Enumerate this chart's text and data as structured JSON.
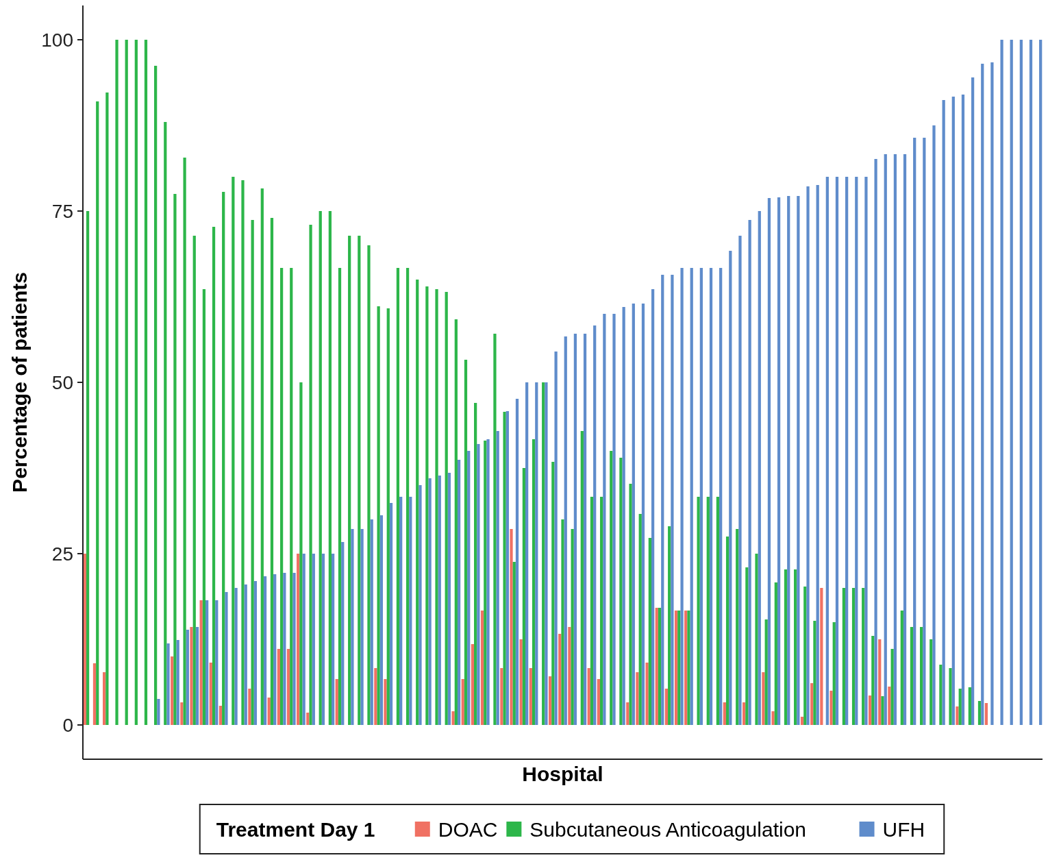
{
  "chart_data": {
    "type": "bar",
    "xlabel": "Hospital",
    "ylabel": "Percentage of patients",
    "legend_title": "Treatment Day 1",
    "legend": "bottom",
    "grid": false,
    "ylim": [
      -5,
      105
    ],
    "yticks": [
      0,
      25,
      50,
      75,
      100
    ],
    "categories": [
      null,
      null,
      null,
      null,
      null,
      null,
      null,
      null,
      null,
      null,
      null,
      null,
      null,
      null,
      null,
      null,
      null,
      null,
      null,
      null,
      null,
      null,
      null,
      null,
      null,
      null,
      null,
      null,
      null,
      null,
      null,
      null,
      null,
      null,
      null,
      null,
      null,
      null,
      null,
      null,
      null,
      null,
      null,
      null,
      null,
      null,
      null,
      null,
      null,
      null,
      null,
      null,
      null,
      null,
      null,
      null,
      null,
      null,
      null,
      null,
      null,
      null,
      null,
      null,
      null,
      null,
      null,
      null,
      null,
      null,
      null,
      null,
      null,
      null,
      null,
      null,
      null,
      null,
      null,
      null,
      null,
      null,
      null,
      null,
      null,
      null,
      null,
      null,
      null,
      null,
      null,
      null,
      null,
      null,
      null,
      null,
      null,
      null,
      null
    ],
    "series": [
      {
        "name": "DOAC",
        "color": "#f07163",
        "values": [
          25,
          9,
          7.7,
          0,
          0,
          0,
          0,
          0,
          0,
          10,
          3.3,
          14.3,
          18.2,
          9.1,
          2.8,
          0,
          0,
          5.3,
          0,
          4,
          11.1,
          11.1,
          25,
          1.8,
          0,
          0,
          6.7,
          0,
          0,
          0,
          8.3,
          6.7,
          0,
          0,
          0,
          0,
          0,
          0,
          2,
          6.7,
          11.8,
          16.7,
          0,
          8.3,
          28.6,
          12.5,
          8.3,
          0,
          7.1,
          13.3,
          14.3,
          0,
          8.3,
          6.7,
          0,
          0,
          3.3,
          7.7,
          9.1,
          17.1,
          5.3,
          16.7,
          16.7,
          0,
          0,
          0,
          3.3,
          0,
          3.3,
          0,
          7.7,
          2,
          0,
          0,
          1.2,
          6.1,
          20,
          5,
          0,
          0,
          0,
          4.3,
          12.5,
          5.6,
          0,
          0,
          0,
          0,
          0,
          0,
          2.7,
          0,
          0,
          3.2,
          0,
          0,
          0,
          0,
          0
        ]
      },
      {
        "name": "Subcutaneous Anticoagulation",
        "color": "#2db64a",
        "values": [
          75,
          91,
          92.3,
          100,
          100,
          100,
          100,
          96.2,
          88,
          77.5,
          82.8,
          71.4,
          63.6,
          72.7,
          77.8,
          80,
          79.5,
          73.7,
          78.3,
          74,
          66.7,
          66.7,
          50,
          73,
          75,
          75,
          66.7,
          71.4,
          71.4,
          70,
          61.1,
          60.8,
          66.7,
          66.7,
          65,
          64,
          63.6,
          63.2,
          59.2,
          53.3,
          47,
          41.5,
          57.1,
          45.7,
          23.8,
          37.5,
          41.7,
          50,
          38.4,
          30,
          28.6,
          42.9,
          33.3,
          33.3,
          40,
          39,
          35.2,
          30.8,
          27.3,
          17.1,
          29,
          16.7,
          16.7,
          33.3,
          33.3,
          33.3,
          27.5,
          28.6,
          23,
          25,
          15.4,
          20.8,
          22.7,
          22.7,
          20.2,
          15.2,
          0,
          15,
          20,
          20,
          20,
          13,
          4.2,
          11.1,
          16.7,
          14.3,
          14.3,
          12.5,
          8.8,
          8.3,
          5.3,
          5.5,
          3.5,
          0,
          0,
          0,
          0,
          0,
          0
        ]
      },
      {
        "name": "UFH",
        "color": "#5f8ccb",
        "values": [
          0,
          0,
          0,
          0,
          0,
          0,
          0,
          3.8,
          11.9,
          12.4,
          13.9,
          14.3,
          18.2,
          18.2,
          19.4,
          20,
          20.5,
          21,
          21.7,
          22,
          22.2,
          22.2,
          25,
          25,
          25,
          25,
          26.7,
          28.6,
          28.6,
          30,
          30.6,
          32.4,
          33.3,
          33.3,
          35,
          36,
          36.4,
          36.8,
          38.7,
          40,
          41,
          41.7,
          42.9,
          45.8,
          47.6,
          50,
          50,
          50,
          54.5,
          56.7,
          57.1,
          57.1,
          58.3,
          60,
          60,
          61,
          61.5,
          61.5,
          63.6,
          65.7,
          65.7,
          66.7,
          66.7,
          66.7,
          66.7,
          66.7,
          69.2,
          71.4,
          73.7,
          75,
          76.9,
          77,
          77.2,
          77.2,
          78.6,
          78.8,
          80,
          80,
          80,
          80,
          80,
          82.6,
          83.3,
          83.3,
          83.3,
          85.7,
          85.7,
          87.5,
          91.2,
          91.7,
          92,
          94.5,
          96.5,
          96.7,
          100,
          100,
          100,
          100,
          100
        ]
      }
    ]
  }
}
